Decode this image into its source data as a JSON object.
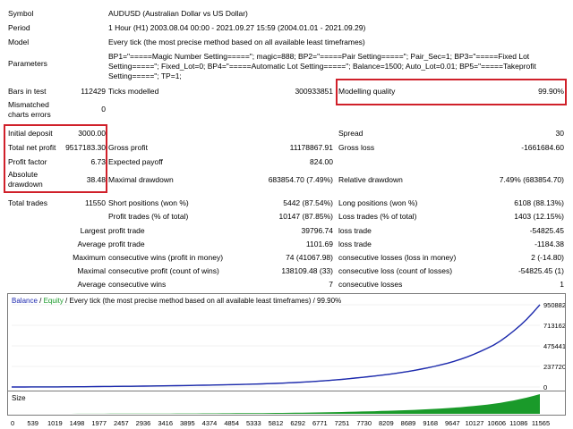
{
  "report": {
    "symbol_label": "Symbol",
    "symbol_value": "AUDUSD (Australian Dollar vs US Dollar)",
    "period_label": "Period",
    "period_value": "1 Hour (H1) 2003.08.04 00:00 - 2021.09.27 15:59 (2004.01.01 - 2021.09.29)",
    "model_label": "Model",
    "model_value": "Every tick (the most precise method based on all available least timeframes)",
    "parameters_label": "Parameters",
    "parameters_value": "BP1=\"=====Magic Number Setting=====\"; magic=888; BP2=\"=====Pair Setting=====\"; Pair_Sec=1; BP3=\"=====Fixed Lot Setting=====\"; Fixed_Lot=0; BP4=\"=====Automatic Lot Setting=====\"; Balance=1500; Auto_Lot=0.01; BP5=\"=====Takeprofit Setting=====\"; TP=1;",
    "bars_label": "Bars in test",
    "bars_value": "112429",
    "ticks_label": "Ticks modelled",
    "ticks_value": "300933851",
    "quality_label": "Modelling quality",
    "quality_value": "99.90%",
    "mismatch_label": "Mismatched charts errors",
    "mismatch_value": "0",
    "deposit_label": "Initial deposit",
    "deposit_value": "3000.00",
    "spread_label": "Spread",
    "spread_value": "30",
    "net_label": "Total net profit",
    "net_value": "9517183.30",
    "gross_profit_label": "Gross profit",
    "gross_profit_value": "11178867.91",
    "gross_loss_label": "Gross loss",
    "gross_loss_value": "-1661684.60",
    "pf_label": "Profit factor",
    "pf_value": "6.73",
    "payoff_label": "Expected payoff",
    "payoff_value": "824.00",
    "absdd_label": "Absolute drawdown",
    "absdd_value": "38.48",
    "maxdd_label": "Maximal drawdown",
    "maxdd_value": "683854.70 (7.49%)",
    "reldd_label": "Relative drawdown",
    "reldd_value": "7.49% (683854.70)",
    "trades_label": "Total trades",
    "trades_value": "11550",
    "short_label": "Short positions (won %)",
    "short_value": "5442 (87.54%)",
    "long_label": "Long positions (won %)",
    "long_value": "6108 (88.13%)",
    "pt_label": "Profit trades (% of total)",
    "pt_value": "10147 (87.85%)",
    "lt_label": "Loss trades (% of total)",
    "lt_value": "1403 (12.15%)",
    "largest_label": "Largest",
    "largest_profit_label": "profit trade",
    "largest_profit_value": "39796.74",
    "largest_loss_label": "loss trade",
    "largest_loss_value": "-54825.45",
    "average_label": "Average",
    "avg_profit_label": "profit trade",
    "avg_profit_value": "1101.69",
    "avg_loss_label": "loss trade",
    "avg_loss_value": "-1184.38",
    "maximum_label": "Maximum",
    "max_wins_label": "consecutive wins (profit in money)",
    "max_wins_value": "74 (41067.98)",
    "max_losses_label": "consecutive losses (loss in money)",
    "max_losses_value": "2 (-14.80)",
    "maximal_label": "Maximal",
    "maximal_profit_label": "consecutive profit (count of wins)",
    "maximal_profit_value": "138109.48 (33)",
    "maximal_loss_label": "consecutive loss (count of losses)",
    "maximal_loss_value": "-54825.45 (1)",
    "average2_label": "Average",
    "avg_wins_label": "consecutive wins",
    "avg_wins_value": "7",
    "avg_losses_label": "consecutive losses",
    "avg_losses_value": "1"
  },
  "chart": {
    "legend_balance": "Balance",
    "legend_sep": " / ",
    "legend_equity": "Equity",
    "legend_rest": " / Every tick (the most precise method based on all available least timeframes) / 99.90%",
    "size_label": "Size",
    "y_ticks": [
      "9508829",
      "7131622",
      "4754416",
      "2377207",
      "0"
    ],
    "x_ticks": [
      "0",
      "539",
      "1019",
      "1498",
      "1977",
      "2457",
      "2936",
      "3416",
      "3895",
      "4374",
      "4854",
      "5333",
      "5812",
      "6292",
      "6771",
      "7251",
      "7730",
      "8209",
      "8689",
      "9168",
      "9647",
      "10127",
      "10606",
      "11086",
      "11565"
    ],
    "colors": {
      "balance": "#1f2ab0",
      "equity": "#1a9a2a",
      "highlight": "#d0202a",
      "size": "#1a9a2a"
    }
  },
  "chart_data": {
    "type": "line",
    "x": [
      0,
      1977,
      3895,
      5812,
      7730,
      8689,
      9647,
      10127,
      10606,
      11086,
      11565
    ],
    "series": [
      {
        "name": "Balance",
        "values": [
          3000,
          60000,
          180000,
          420000,
          1150000,
          1800000,
          2900000,
          3800000,
          5000000,
          6900000,
          9520000
        ]
      }
    ],
    "ylim": [
      0,
      9508829
    ],
    "y_ticks": [
      0,
      2377207,
      4754416,
      7131622,
      9508829
    ]
  }
}
